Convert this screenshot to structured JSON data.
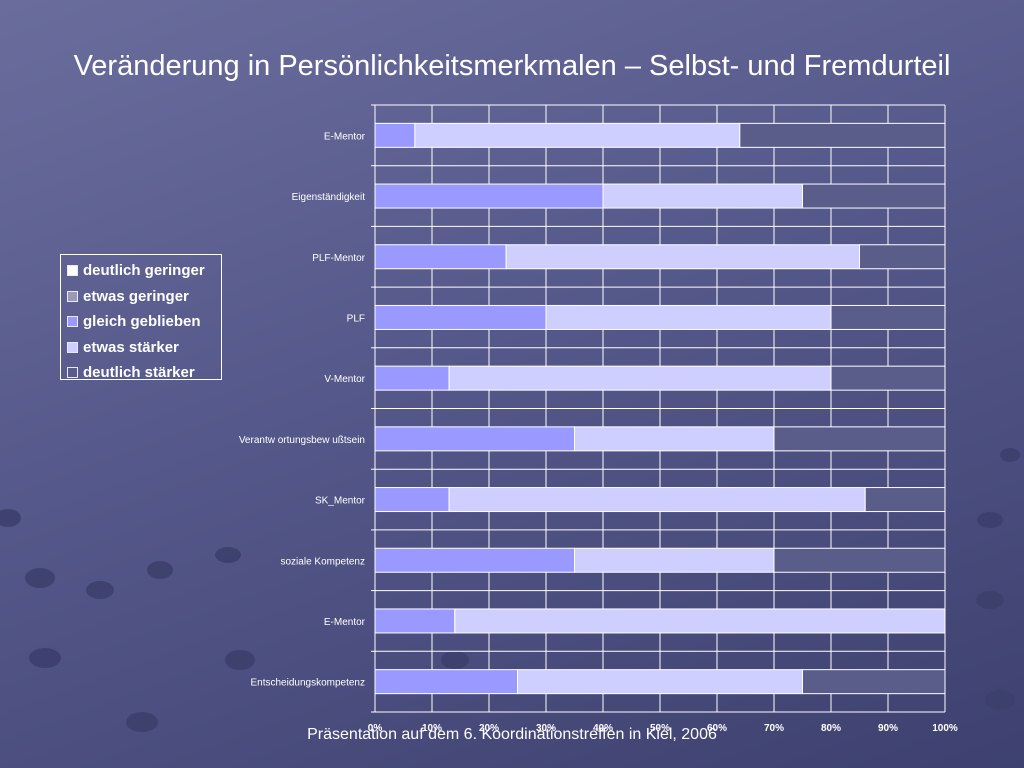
{
  "slide": {
    "title": "Veränderung in Persönlichkeitsmerkmalen – Selbst- und Fremdurteil",
    "footer": "Präsentation auf dem 6. Koordinationstreffen in Kiel, 2006"
  },
  "colors": {
    "background": "#55588a",
    "text": "#ffffff",
    "gridline": "#ffffff",
    "deutlich_geringer": "#ffffff",
    "etwas_geringer": "#9a9ab2",
    "gleich_geblieben": "#9999ff",
    "etwas_staerker": "#cfcfff",
    "deutlich_staerker": "#5a5d8a"
  },
  "chart_data": {
    "type": "bar",
    "orientation": "horizontal",
    "stacked": true,
    "percent_scale": true,
    "title": "",
    "xlabel": "",
    "ylabel": "",
    "xlim": [
      0,
      100
    ],
    "x_ticks": [
      "0%",
      "10%",
      "20%",
      "30%",
      "40%",
      "50%",
      "60%",
      "70%",
      "80%",
      "90%",
      "100%"
    ],
    "grid": true,
    "legend_position": "left",
    "categories": [
      "E-Mentor",
      "Eigenständigkeit",
      "PLF-Mentor",
      "PLF",
      "V-Mentor",
      "Verantw ortungsbew ußtsein",
      "SK_Mentor",
      "soziale Kompetenz",
      "E-Mentor",
      "Entscheidungskompetenz"
    ],
    "series": [
      {
        "name": "deutlich geringer",
        "color": "#ffffff",
        "values": [
          0,
          0,
          0,
          0,
          0,
          0,
          0,
          0,
          0,
          0
        ]
      },
      {
        "name": "etwas geringer",
        "color": "#9a9ab2",
        "values": [
          0,
          0,
          0,
          0,
          0,
          0,
          0,
          0,
          0,
          0
        ]
      },
      {
        "name": "gleich geblieben",
        "color": "#9999ff",
        "values": [
          7,
          40,
          23,
          30,
          13,
          35,
          13,
          35,
          14,
          25
        ]
      },
      {
        "name": "etwas stärker",
        "color": "#cfcfff",
        "values": [
          57,
          35,
          62,
          50,
          67,
          35,
          73,
          35,
          86,
          50
        ]
      },
      {
        "name": "deutlich stärker",
        "color": "#5a5d8a",
        "values": [
          36,
          25,
          15,
          20,
          20,
          30,
          14,
          30,
          0,
          25
        ]
      }
    ]
  }
}
